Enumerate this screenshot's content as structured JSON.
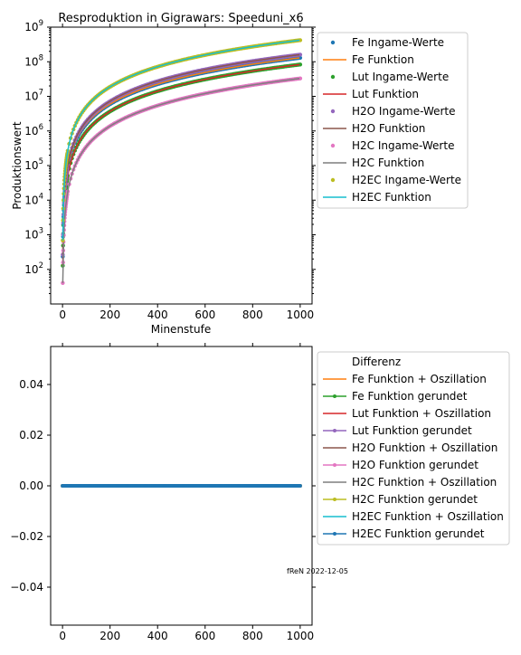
{
  "chart_data": [
    {
      "type": "scatter",
      "title": "Resproduktion in Gigrawars: Speeduni_x6",
      "xlabel": "Minenstufe",
      "ylabel": "Produktionswert",
      "xscale": "linear",
      "yscale": "log",
      "xlim": [
        -50,
        1050
      ],
      "ylim": [
        10,
        1000000000
      ],
      "xticks": [
        "0",
        "200",
        "400",
        "600",
        "800",
        "1000"
      ],
      "yticks": [
        "10^2",
        "10^3",
        "10^4",
        "10^5",
        "10^6",
        "10^7",
        "10^8",
        "10^9"
      ],
      "grid": false,
      "legend_position": "outside-right",
      "series": [
        {
          "name": "Fe Ingame-Werte",
          "kind": "points",
          "color": "#1f77b4",
          "x": [
            1,
            10,
            50,
            100,
            200,
            400,
            600,
            800,
            1000
          ],
          "y": [
            100,
            30000,
            420000,
            1300000,
            4200000,
            15000000,
            36000000,
            74000000,
            130000000
          ]
        },
        {
          "name": "Fe Funktion",
          "kind": "line",
          "color": "#ff7f0e",
          "x": [
            1,
            10,
            50,
            100,
            200,
            400,
            600,
            800,
            1000
          ],
          "y": [
            100,
            30000,
            420000,
            1300000,
            4200000,
            15000000,
            36000000,
            74000000,
            130000000
          ]
        },
        {
          "name": "Lut Ingame-Werte",
          "kind": "points",
          "color": "#2ca02c",
          "x": [
            1,
            10,
            50,
            100,
            200,
            400,
            600,
            800,
            1000
          ],
          "y": [
            60,
            18000,
            250000,
            800000,
            2500000,
            9000000,
            22000000,
            46000000,
            83000000
          ]
        },
        {
          "name": "Lut Funktion",
          "kind": "line",
          "color": "#d62728",
          "x": [
            1,
            10,
            50,
            100,
            200,
            400,
            600,
            800,
            1000
          ],
          "y": [
            60,
            18000,
            250000,
            800000,
            2500000,
            9000000,
            22000000,
            46000000,
            83000000
          ]
        },
        {
          "name": "H2O Ingame-Werte",
          "kind": "points",
          "color": "#9467bd",
          "x": [
            1,
            10,
            50,
            100,
            200,
            400,
            600,
            800,
            1000
          ],
          "y": [
            120,
            35000,
            500000,
            1600000,
            5000000,
            18000000,
            44000000,
            90000000,
            160000000
          ]
        },
        {
          "name": "H2O Funktion",
          "kind": "line",
          "color": "#8c564b",
          "x": [
            1,
            10,
            50,
            100,
            200,
            400,
            600,
            800,
            1000
          ],
          "y": [
            120,
            35000,
            500000,
            1600000,
            5000000,
            18000000,
            44000000,
            90000000,
            160000000
          ]
        },
        {
          "name": "H2C Ingame-Werte",
          "kind": "points",
          "color": "#e377c2",
          "x": [
            1,
            10,
            50,
            100,
            200,
            400,
            600,
            800,
            1000
          ],
          "y": [
            25,
            6000,
            90000,
            280000,
            900000,
            3300000,
            8000000,
            17000000,
            33000000
          ]
        },
        {
          "name": "H2C Funktion",
          "kind": "line",
          "color": "#7f7f7f",
          "x": [
            1,
            10,
            50,
            100,
            200,
            400,
            600,
            800,
            1000
          ],
          "y": [
            25,
            6000,
            90000,
            280000,
            900000,
            3300000,
            8000000,
            17000000,
            33000000
          ]
        },
        {
          "name": "H2EC Ingame-Werte",
          "kind": "points",
          "color": "#bcbd22",
          "x": [
            1,
            10,
            50,
            100,
            200,
            400,
            600,
            800,
            1000
          ],
          "y": [
            300,
            90000,
            1300000,
            4000000,
            13000000,
            48000000,
            110000000,
            230000000,
            420000000
          ]
        },
        {
          "name": "H2EC Funktion",
          "kind": "line",
          "color": "#17becf",
          "x": [
            1,
            10,
            50,
            100,
            200,
            400,
            600,
            800,
            1000
          ],
          "y": [
            300,
            90000,
            1300000,
            4000000,
            13000000,
            48000000,
            110000000,
            230000000,
            420000000
          ]
        }
      ]
    },
    {
      "type": "line",
      "title": "",
      "xlabel": "",
      "ylabel": "",
      "xlim": [
        -50,
        1050
      ],
      "ylim": [
        -0.055,
        0.055
      ],
      "xticks": [
        "0",
        "200",
        "400",
        "600",
        "800",
        "1000"
      ],
      "yticks": [
        "−0.04",
        "−0.02",
        "0.00",
        "0.02",
        "0.04"
      ],
      "grid": false,
      "legend_title": "Differenz",
      "legend_position": "outside-right",
      "annotation": "fReN 2022-12-05",
      "x_range": [
        0,
        1000
      ],
      "series": [
        {
          "name": "Fe Funktion + Oszillation",
          "kind": "line",
          "color": "#ff7f0e",
          "value": 0
        },
        {
          "name": "Fe Funktion gerundet",
          "kind": "line-marker",
          "color": "#2ca02c",
          "value": 0
        },
        {
          "name": "Lut Funktion + Oszillation",
          "kind": "line",
          "color": "#d62728",
          "value": 0
        },
        {
          "name": "Lut Funktion gerundet",
          "kind": "line-marker",
          "color": "#9467bd",
          "value": 0
        },
        {
          "name": "H2O Funktion + Oszillation",
          "kind": "line",
          "color": "#8c564b",
          "value": 0
        },
        {
          "name": "H2O Funktion gerundet",
          "kind": "line-marker",
          "color": "#e377c2",
          "value": 0
        },
        {
          "name": "H2C Funktion + Oszillation",
          "kind": "line",
          "color": "#7f7f7f",
          "value": 0
        },
        {
          "name": "H2C Funktion gerundet",
          "kind": "line-marker",
          "color": "#bcbd22",
          "value": 0
        },
        {
          "name": "H2EC Funktion + Oszillation",
          "kind": "line",
          "color": "#17becf",
          "value": 0
        },
        {
          "name": "H2EC Funktion gerundet",
          "kind": "line-marker",
          "color": "#1f77b4",
          "value": 0
        }
      ]
    }
  ]
}
